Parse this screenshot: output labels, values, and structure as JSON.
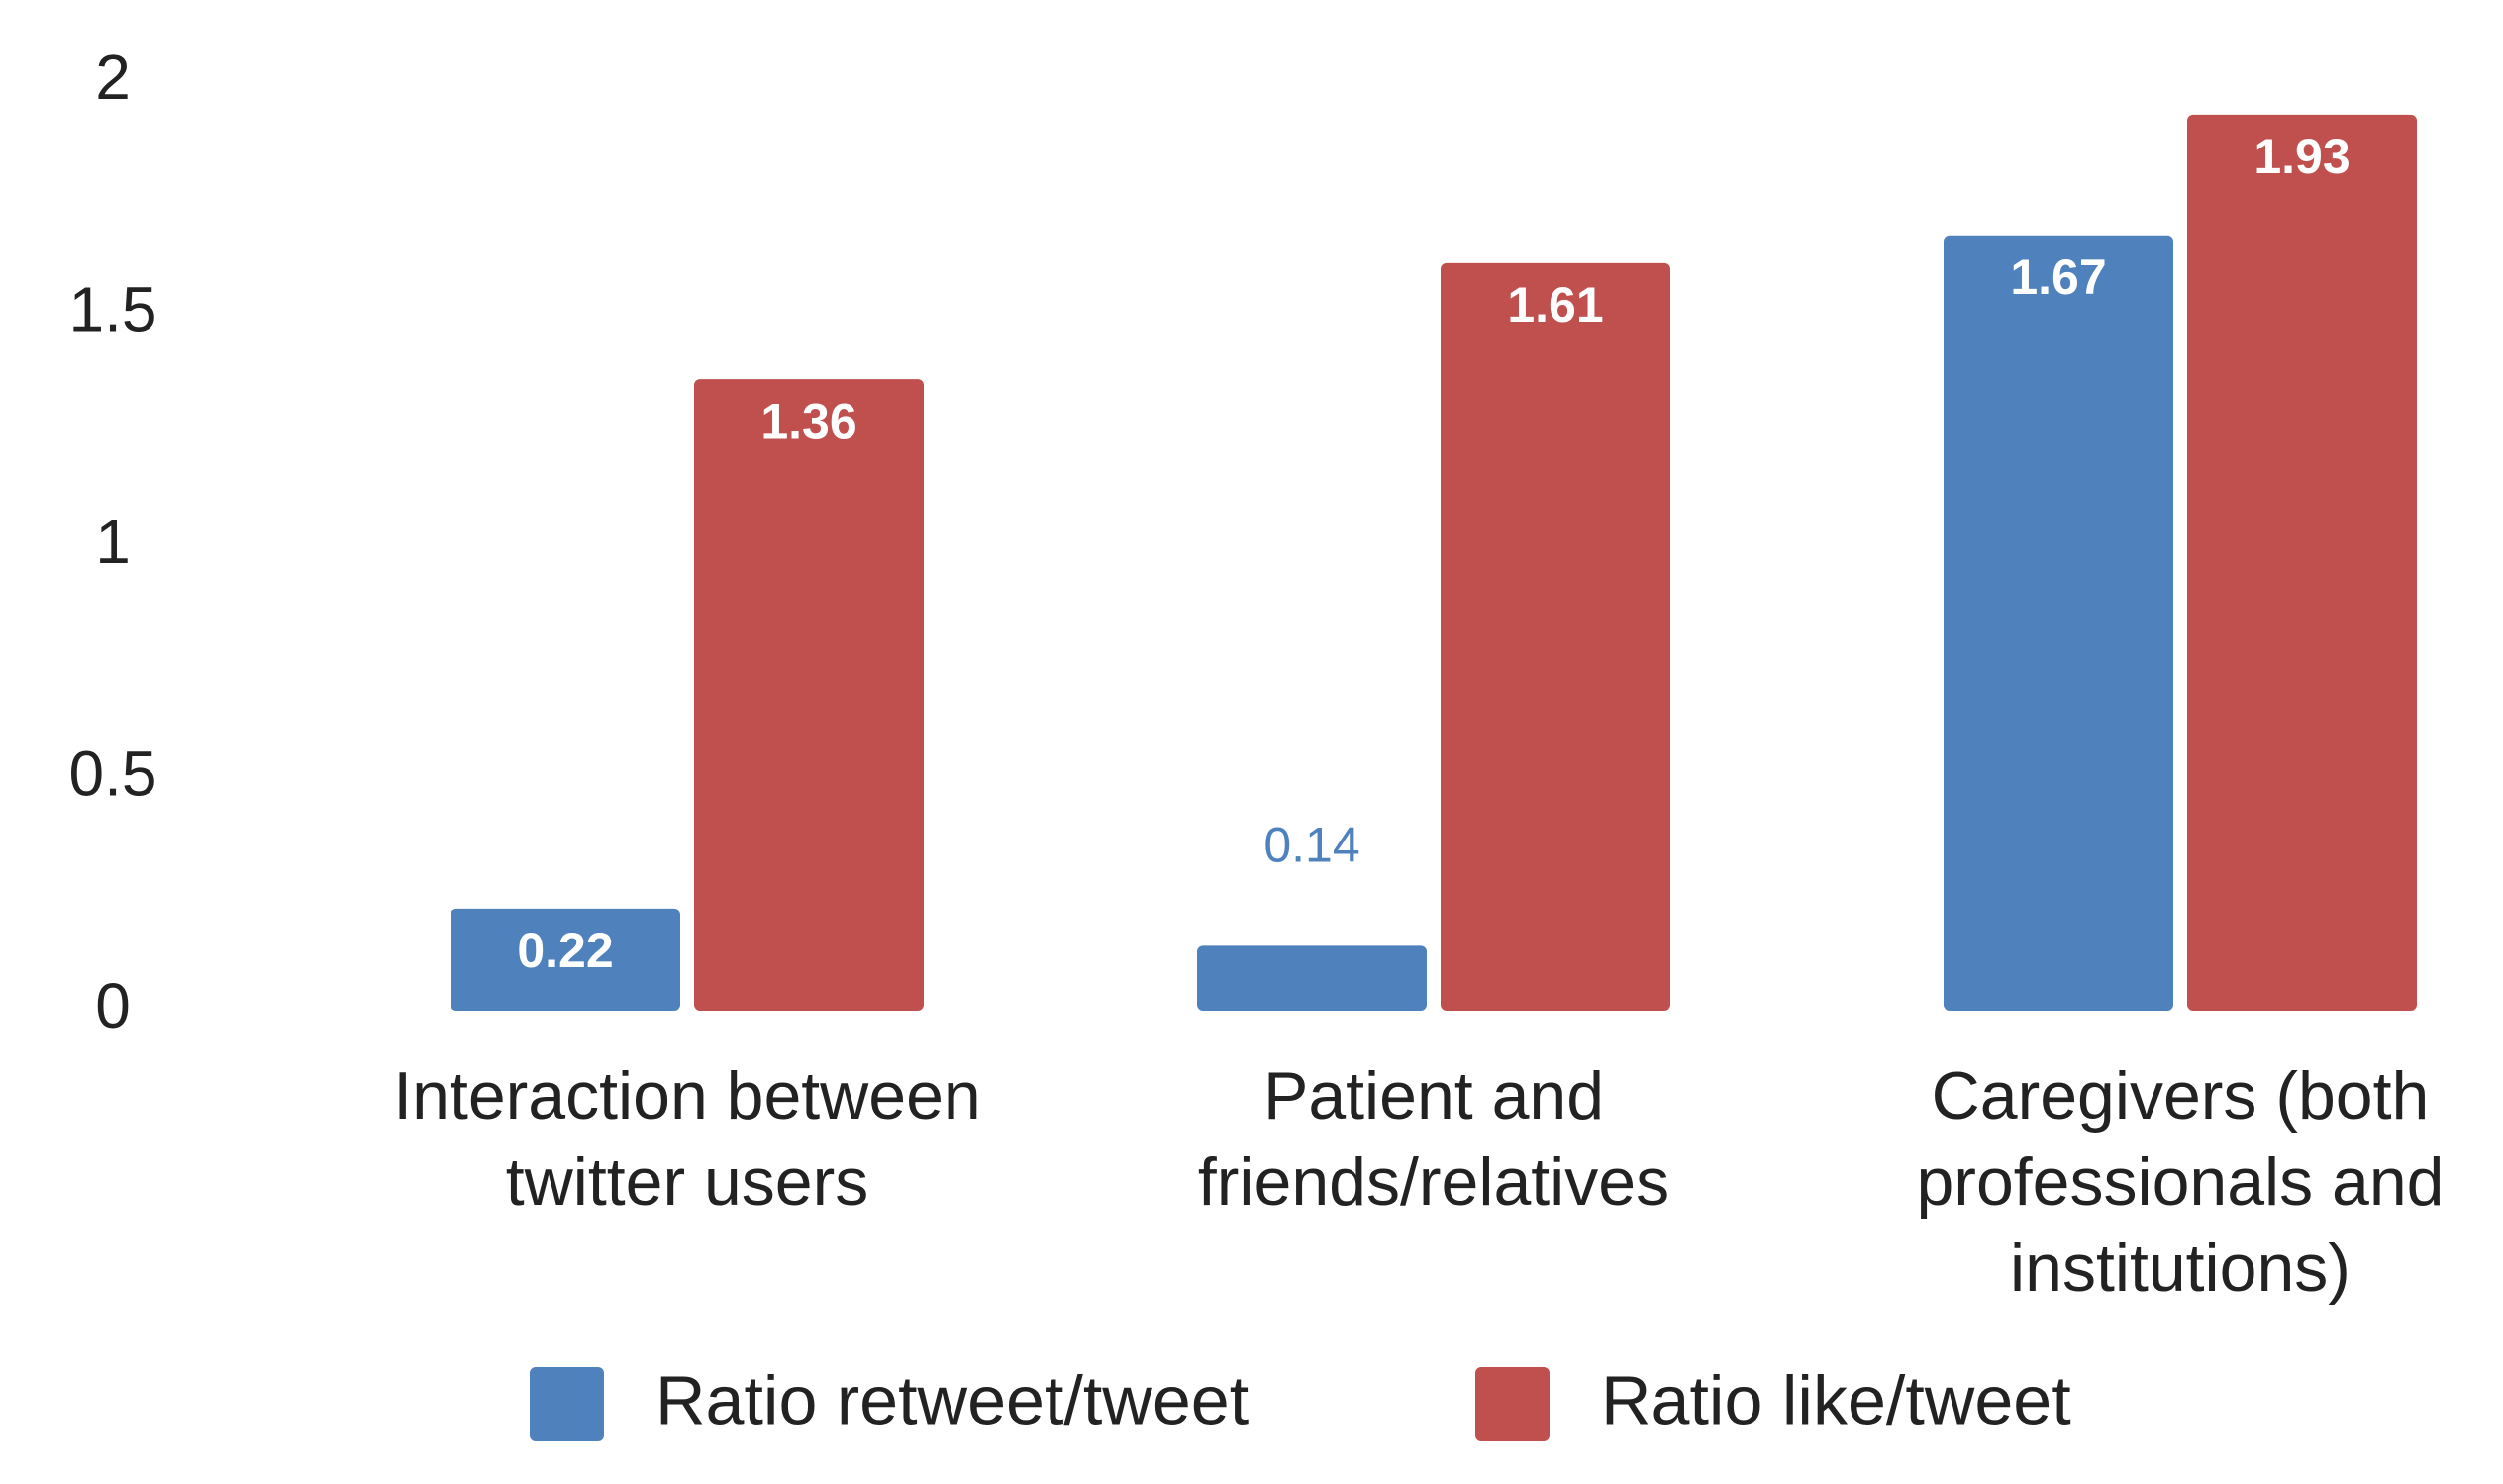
{
  "chart_data": {
    "type": "bar",
    "categories": [
      "Interaction between twitter users",
      "Patient and friends/relatives",
      "Caregivers (both professionals and institutions)"
    ],
    "series": [
      {
        "name": "Ratio retweet/tweet",
        "color": "#4f81bd",
        "values": [
          0.22,
          0.14,
          1.67
        ]
      },
      {
        "name": "Ratio like/tweet",
        "color": "#c0504d",
        "values": [
          1.36,
          1.61,
          1.93
        ]
      }
    ],
    "ylim": [
      0,
      2
    ],
    "yticks": [
      0,
      0.5,
      1,
      1.5,
      2
    ],
    "grid": false,
    "legend": "bottom"
  }
}
